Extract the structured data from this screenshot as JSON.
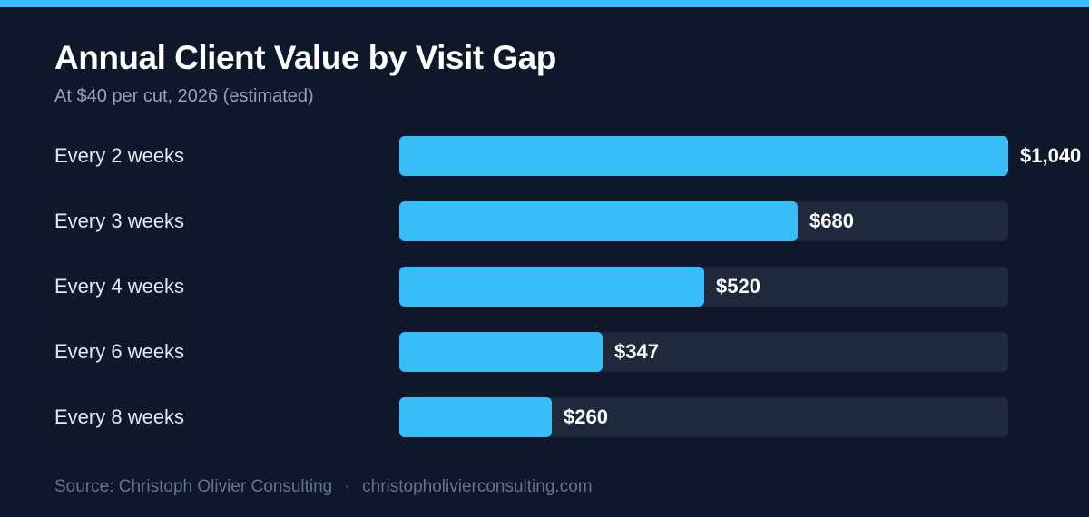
{
  "colors": {
    "background": "#0f172a",
    "accent": "#38bdf8",
    "track": "#1e293b",
    "label": "#e2e8f0",
    "muted": "#94a3b8",
    "footer": "#64748b"
  },
  "chart_data": {
    "type": "bar",
    "orientation": "horizontal",
    "title": "Annual Client Value by Visit Gap",
    "subtitle": "At $40 per cut, 2026 (estimated)",
    "categories": [
      "Every 2 weeks",
      "Every 3 weeks",
      "Every 4 weeks",
      "Every 6 weeks",
      "Every 8 weeks"
    ],
    "values": [
      1040,
      680,
      520,
      347,
      260
    ],
    "value_labels": [
      "$1,040",
      "$680",
      "$520",
      "$347",
      "$260"
    ],
    "xlim": [
      0,
      1040
    ],
    "grid": false,
    "legend": "none"
  },
  "footer": {
    "source": "Source: Christoph Olivier Consulting",
    "separator": "·",
    "url": "christopholivierconsulting.com"
  }
}
